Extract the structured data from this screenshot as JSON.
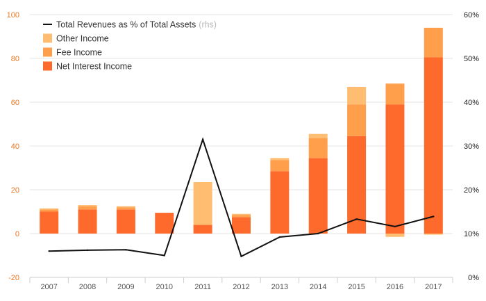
{
  "chart_data": {
    "type": "bar",
    "categories": [
      "2007",
      "2008",
      "2009",
      "2010",
      "2011",
      "2012",
      "2013",
      "2014",
      "2015",
      "2016",
      "2017"
    ],
    "series": [
      {
        "name": "Net Interest Income",
        "color": "#fe6a2c",
        "values": [
          10,
          11,
          11,
          9.5,
          4,
          7.5,
          28.5,
          34.5,
          44.5,
          59,
          80.5
        ]
      },
      {
        "name": "Fee Income",
        "color": "#ff9e4b",
        "values": [
          1,
          1.5,
          1,
          0,
          0,
          1,
          5,
          9,
          14.5,
          9.5,
          13.5
        ]
      },
      {
        "name": "Other Income",
        "color": "#ffbd72",
        "values": [
          0.5,
          0.5,
          0.5,
          0,
          19.5,
          0.5,
          1,
          2,
          8,
          0,
          0
        ]
      }
    ],
    "negative_other": [
      0,
      0,
      0,
      0,
      0,
      0,
      0,
      0,
      0,
      -1.5,
      -0.5
    ],
    "line_series": {
      "name": "Total Revenues as % of Total Assets",
      "note": "(rhs)",
      "color": "#111111",
      "values": [
        6,
        6.2,
        6.3,
        5,
        31.5,
        4.8,
        9.2,
        10,
        13.3,
        11.6,
        13.9
      ]
    },
    "y_left": {
      "min": -20,
      "max": 100,
      "ticks": [
        "-20",
        "0",
        "20",
        "40",
        "60",
        "80",
        "100"
      ]
    },
    "y_right": {
      "min": 0,
      "max": 60,
      "ticks": [
        "0%",
        "10%",
        "20%",
        "30%",
        "40%",
        "50%",
        "60%"
      ]
    },
    "legend": [
      {
        "label": "Total Revenues as % of Total Assets",
        "note": "(rhs)",
        "kind": "line",
        "color": "#111111"
      },
      {
        "label": "Other Income",
        "kind": "box",
        "color": "#ffbd72"
      },
      {
        "label": "Fee Income",
        "kind": "box",
        "color": "#ff9e4b"
      },
      {
        "label": "Net Interest Income",
        "kind": "box",
        "color": "#fe6a2c"
      }
    ],
    "grid": true,
    "legend_position": "top-left"
  }
}
